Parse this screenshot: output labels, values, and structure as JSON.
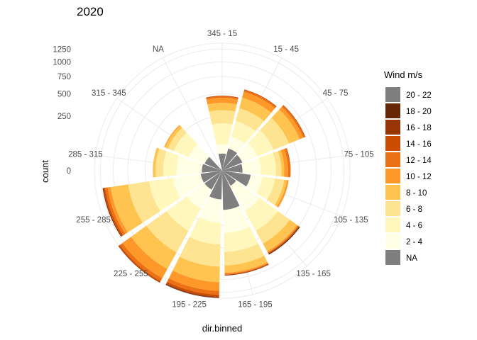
{
  "chart_data": {
    "type": "polar-stacked-bar",
    "title": "2020",
    "xlabel": "dir.binned",
    "ylabel": "count",
    "radial_ticks": [
      "0",
      "250",
      "500",
      "750",
      "1000",
      "1250"
    ],
    "radial_max": 1375,
    "grid": true,
    "legend": {
      "title": "Wind m/s",
      "position": "right",
      "items": [
        {
          "label": "20 - 22",
          "color": "#7f7f7f"
        },
        {
          "label": "18 - 20",
          "color": "#662506"
        },
        {
          "label": "16 - 18",
          "color": "#993404"
        },
        {
          "label": "14 - 16",
          "color": "#cc4c02"
        },
        {
          "label": "12 - 14",
          "color": "#ec7014"
        },
        {
          "label": "10 - 12",
          "color": "#fe9929"
        },
        {
          "label": "8 - 10",
          "color": "#fec44f"
        },
        {
          "label": "6 - 8",
          "color": "#fee391"
        },
        {
          "label": "4 - 6",
          "color": "#fff7bc"
        },
        {
          "label": "2 - 4",
          "color": "#ffffe5"
        },
        {
          "label": "NA",
          "color": "#7f7f7f"
        }
      ]
    },
    "categories": [
      "345 - 15",
      "15 - 45",
      "45 - 75",
      "75 - 105",
      "105 - 135",
      "135 - 165",
      "165 - 195",
      "195 - 225",
      "225 - 255",
      "255 - 285",
      "285 - 315",
      "315 - 345",
      "NA"
    ],
    "series": [
      {
        "name": "NA",
        "values": [
          25,
          45,
          40,
          35,
          70,
          25,
          130,
          70,
          40,
          40,
          35,
          30,
          0
        ]
      },
      {
        "name": "2 - 4",
        "values": [
          35,
          60,
          80,
          90,
          70,
          155,
          200,
          160,
          120,
          170,
          140,
          80,
          0
        ]
      },
      {
        "name": "4 - 6",
        "values": [
          130,
          120,
          140,
          120,
          100,
          220,
          230,
          230,
          240,
          250,
          120,
          120,
          0
        ]
      },
      {
        "name": "6 - 8",
        "values": [
          120,
          130,
          180,
          50,
          90,
          190,
          200,
          320,
          340,
          300,
          80,
          60,
          0
        ]
      },
      {
        "name": "8 - 10",
        "values": [
          80,
          130,
          150,
          30,
          30,
          130,
          120,
          270,
          330,
          310,
          30,
          30,
          0
        ]
      },
      {
        "name": "10 - 12",
        "values": [
          60,
          80,
          55,
          40,
          20,
          20,
          20,
          170,
          210,
          60,
          0,
          10,
          0
        ]
      },
      {
        "name": "12 - 14",
        "values": [
          15,
          25,
          25,
          30,
          0,
          10,
          10,
          80,
          70,
          50,
          0,
          0,
          0
        ]
      },
      {
        "name": "14 - 16",
        "values": [
          10,
          10,
          10,
          0,
          0,
          10,
          10,
          40,
          30,
          30,
          0,
          0,
          0
        ]
      },
      {
        "name": "16 - 18",
        "values": [
          0,
          0,
          0,
          0,
          0,
          10,
          10,
          20,
          10,
          20,
          0,
          0,
          0
        ]
      },
      {
        "name": "18 - 20",
        "values": [
          0,
          0,
          0,
          0,
          0,
          10,
          0,
          10,
          0,
          0,
          0,
          0,
          0
        ]
      },
      {
        "name": "20 - 22",
        "values": [
          0,
          0,
          0,
          0,
          0,
          0,
          0,
          0,
          0,
          0,
          0,
          0,
          0
        ]
      }
    ]
  }
}
